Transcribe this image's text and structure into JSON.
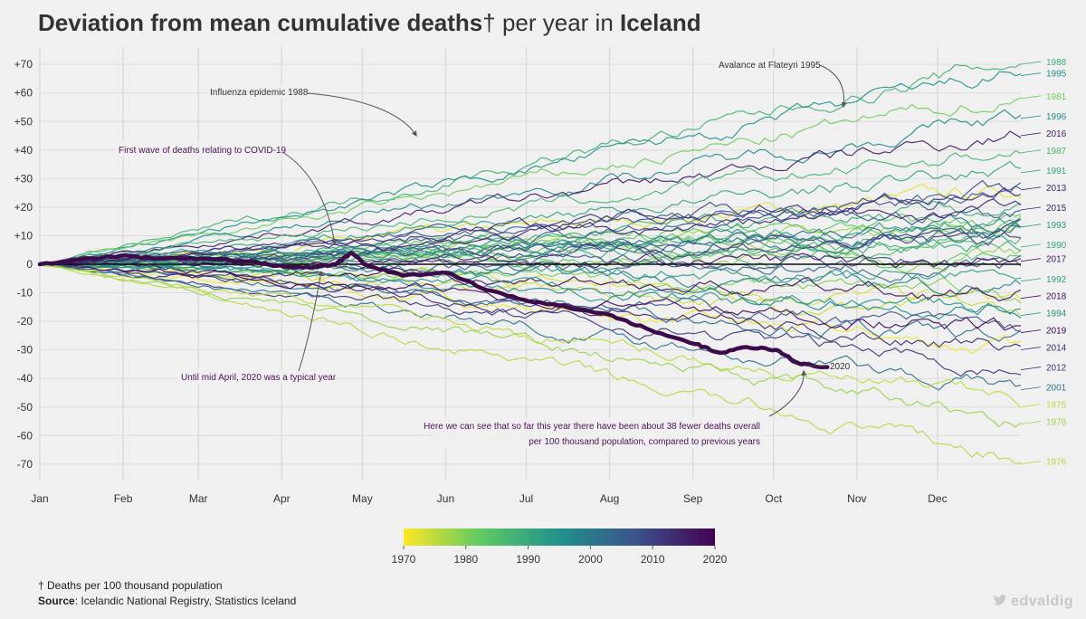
{
  "title": {
    "part1": "Deviation from mean cumulative deaths",
    "dagger": "†",
    "part2": " per year in ",
    "country": "Iceland"
  },
  "footnote": {
    "dagger_note": "† Deaths per 100 thousand population",
    "source_label": "Source",
    "source_text": ": Icelandic National Registry, Statistics Iceland"
  },
  "credit": {
    "icon": "twitter-bird-icon",
    "handle": "edvaldig"
  },
  "colors": {
    "background": "#f0f0f0",
    "zero_line": "#111111",
    "grid": "#dcdcdc",
    "highlight_2020": "#3b0b4a",
    "annotation_text": "#333333",
    "annotation_covid_text": "#4b1156"
  },
  "chart_data": {
    "type": "line",
    "x_axis": {
      "months": [
        "Jan",
        "Feb",
        "Mar",
        "Apr",
        "May",
        "Jun",
        "Jul",
        "Aug",
        "Sep",
        "Oct",
        "Nov",
        "Dec"
      ]
    },
    "y_axis": {
      "ylim": [
        -75,
        75
      ],
      "ticks": [
        70,
        60,
        50,
        40,
        30,
        20,
        10,
        0,
        -10,
        -20,
        -30,
        -40,
        -50,
        -60,
        -70
      ],
      "tick_labels": [
        "+70",
        "+60",
        "+50",
        "+40",
        "+30",
        "+20",
        "+10",
        "0",
        "-10",
        "-20",
        "-30",
        "-40",
        "-50",
        "-60",
        "-70"
      ]
    },
    "grid": true,
    "colorbar": {
      "palette": "viridis",
      "ticks": [
        "1970",
        "1980",
        "1990",
        "2000",
        "2010",
        "2020"
      ],
      "min_year": 1970,
      "max_year": 2020,
      "placement": "bottom-center"
    },
    "series_end_labels": [
      {
        "year": "1988",
        "value": 71
      },
      {
        "year": "1995",
        "value": 67
      },
      {
        "year": "1981",
        "value": 59
      },
      {
        "year": "1996",
        "value": 52
      },
      {
        "year": "2016",
        "value": 46
      },
      {
        "year": "1987",
        "value": 40
      },
      {
        "year": "1991",
        "value": 33
      },
      {
        "year": "2013",
        "value": 27
      },
      {
        "year": "2015",
        "value": 20
      },
      {
        "year": "1993",
        "value": 14
      },
      {
        "year": "1990",
        "value": 7
      },
      {
        "year": "2017",
        "value": 2
      },
      {
        "year": "1992",
        "value": -5
      },
      {
        "year": "2018",
        "value": -11
      },
      {
        "year": "1994",
        "value": -17
      },
      {
        "year": "2019",
        "value": -23
      },
      {
        "year": "2014",
        "value": -29
      },
      {
        "year": "2012",
        "value": -36
      },
      {
        "year": "2001",
        "value": -43
      },
      {
        "year": "1975",
        "value": -49
      },
      {
        "year": "1978",
        "value": -55
      },
      {
        "year": "1976",
        "value": -69
      }
    ],
    "highlight_series": {
      "name": "2020",
      "points": [
        {
          "x": "2020-01-01",
          "y": 0
        },
        {
          "x": "2020-01-20",
          "y": 2
        },
        {
          "x": "2020-01-31",
          "y": 3
        },
        {
          "x": "2020-02-15",
          "y": 2
        },
        {
          "x": "2020-03-01",
          "y": 2
        },
        {
          "x": "2020-03-20",
          "y": 1
        },
        {
          "x": "2020-04-01",
          "y": -1
        },
        {
          "x": "2020-04-12",
          "y": -1
        },
        {
          "x": "2020-04-20",
          "y": 0
        },
        {
          "x": "2020-04-26",
          "y": 4
        },
        {
          "x": "2020-05-01",
          "y": 0
        },
        {
          "x": "2020-05-15",
          "y": -4
        },
        {
          "x": "2020-06-01",
          "y": -3
        },
        {
          "x": "2020-06-15",
          "y": -9
        },
        {
          "x": "2020-07-01",
          "y": -13
        },
        {
          "x": "2020-07-15",
          "y": -15
        },
        {
          "x": "2020-08-01",
          "y": -18
        },
        {
          "x": "2020-08-15",
          "y": -23
        },
        {
          "x": "2020-09-01",
          "y": -28
        },
        {
          "x": "2020-09-10",
          "y": -31
        },
        {
          "x": "2020-09-20",
          "y": -29
        },
        {
          "x": "2020-10-01",
          "y": -30
        },
        {
          "x": "2020-10-10",
          "y": -35
        },
        {
          "x": "2020-10-20",
          "y": -36
        }
      ]
    },
    "annotations": [
      {
        "key": "influenza",
        "text": "Influenza epidemic 1988"
      },
      {
        "key": "avalanche",
        "text": "Avalance at Flateyri 1995"
      },
      {
        "key": "covid",
        "text": "First wave of deaths relating to COVID-19"
      },
      {
        "key": "typical",
        "text": "Until mid April, 2020 was a typical year"
      },
      {
        "key": "fewer1",
        "text": "Here we can see that so far this year there have been about 38 fewer deaths overall"
      },
      {
        "key": "fewer2",
        "text": "per 100 thousand population, compared to previous years"
      },
      {
        "key": "label2020",
        "text": "2020"
      }
    ]
  }
}
